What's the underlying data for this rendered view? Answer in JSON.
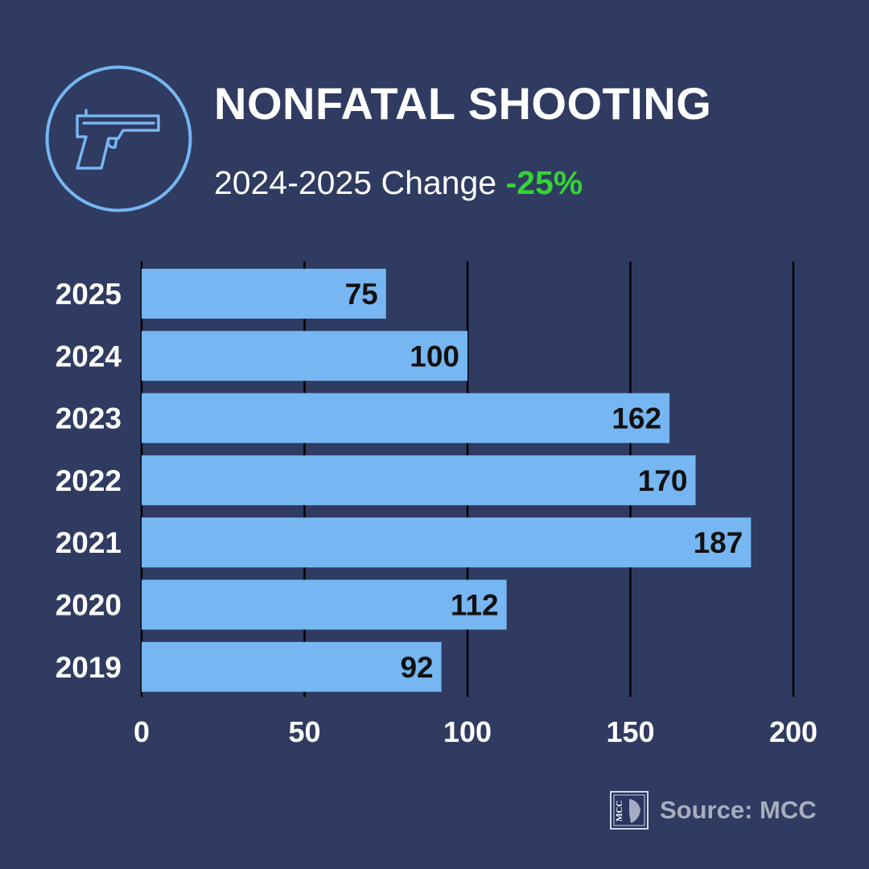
{
  "header": {
    "title": "NONFATAL SHOOTING",
    "subtitle_prefix": "2024-2025 Change",
    "subtitle_change": "-25%",
    "icon": "handgun-icon"
  },
  "colors": {
    "background": "#2f3b61",
    "bar": "#76b6f2",
    "accent_ring": "#76b6f2",
    "change_text": "#35d335",
    "gridline": "#000000"
  },
  "chart_data": {
    "type": "bar",
    "orientation": "horizontal",
    "title": "NONFATAL SHOOTING",
    "categories": [
      "2025",
      "2024",
      "2023",
      "2022",
      "2021",
      "2020",
      "2019"
    ],
    "values": [
      75,
      100,
      162,
      170,
      187,
      112,
      92
    ],
    "xlim": [
      0,
      200
    ],
    "xticks": [
      0,
      50,
      100,
      150,
      200
    ],
    "xlabel": "",
    "ylabel": "",
    "grid": true
  },
  "footer": {
    "source_text": "Source: MCC",
    "logo_text": "MCC",
    "logo_icon": "mcc-logo-icon"
  }
}
